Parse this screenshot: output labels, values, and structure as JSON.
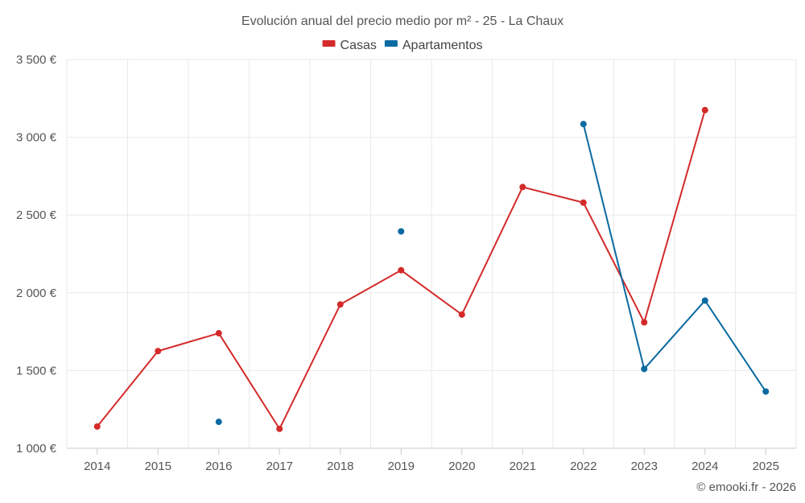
{
  "chart_data": {
    "type": "line",
    "title": "Evolución anual del precio medio por m² - 25 - La Chaux",
    "categories": [
      "2014",
      "2015",
      "2016",
      "2017",
      "2018",
      "2019",
      "2020",
      "2021",
      "2022",
      "2023",
      "2024",
      "2025"
    ],
    "series": [
      {
        "name": "Casas",
        "color": "#d42a2a",
        "values": [
          1140,
          1625,
          1740,
          1125,
          1925,
          2145,
          1860,
          2680,
          2580,
          1810,
          3175,
          null
        ]
      },
      {
        "name": "Apartamentos",
        "color": "#0a6aa1",
        "values": [
          null,
          null,
          1170,
          null,
          null,
          2395,
          null,
          null,
          3085,
          1510,
          1950,
          1365
        ]
      }
    ],
    "ylim": [
      1000,
      3500
    ],
    "yticks": [
      1000,
      1500,
      2000,
      2500,
      3000,
      3500
    ],
    "ytick_labels": [
      "1 000 €",
      "1 500 €",
      "2 000 €",
      "2 500 €",
      "3 000 €",
      "3 500 €"
    ],
    "xlabel": "",
    "ylabel": "",
    "grid": true,
    "legend_position": "top-center"
  },
  "credit": "© emooki.fr - 2026"
}
